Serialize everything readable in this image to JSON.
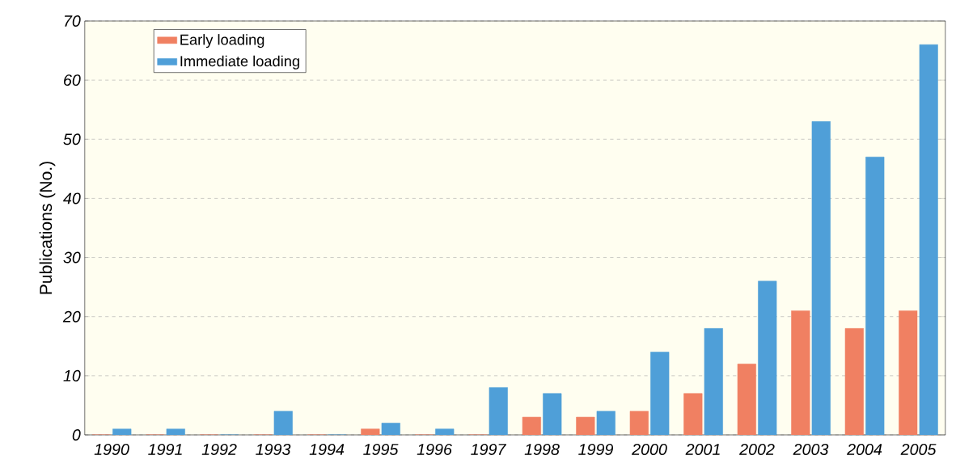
{
  "chart_data": {
    "type": "bar",
    "ylabel": "Publications (No.)",
    "categories": [
      "1990",
      "1991",
      "1992",
      "1993",
      "1994",
      "1995",
      "1996",
      "1997",
      "1998",
      "1999",
      "2000",
      "2001",
      "2002",
      "2003",
      "2004",
      "2005"
    ],
    "series": [
      {
        "name": "Early loading",
        "color": "#f08062",
        "values": [
          0,
          0,
          0,
          0,
          0,
          1,
          0,
          0,
          3,
          3,
          4,
          7,
          12,
          21,
          18,
          21
        ]
      },
      {
        "name": "Immediate loading",
        "color": "#4f9fd8",
        "values": [
          1,
          1,
          0,
          4,
          0,
          2,
          1,
          8,
          7,
          4,
          14,
          18,
          26,
          53,
          47,
          66
        ]
      }
    ],
    "ylim": [
      0,
      70
    ],
    "yticks": [
      0,
      10,
      20,
      30,
      40,
      50,
      60,
      70
    ],
    "grid": "y",
    "legend": "top left"
  }
}
